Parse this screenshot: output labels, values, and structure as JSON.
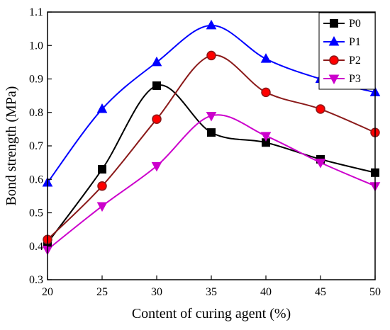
{
  "chart_data": {
    "type": "line",
    "xlabel": "Content of curing agent (%)",
    "ylabel": "Bond strength (MPa)",
    "x": [
      20,
      25,
      30,
      35,
      40,
      45,
      50
    ],
    "xlim": [
      20,
      50
    ],
    "ylim": [
      0.3,
      1.1
    ],
    "x_ticks": [
      20,
      25,
      30,
      35,
      40,
      45,
      50
    ],
    "y_ticks": [
      0.3,
      0.4,
      0.5,
      0.6,
      0.7,
      0.8,
      0.9,
      1.0,
      1.1
    ],
    "x_tick_labels": [
      "20",
      "25",
      "30",
      "35",
      "40",
      "45",
      "50"
    ],
    "y_tick_labels": [
      "0.3",
      "0.4",
      "0.5",
      "0.6",
      "0.7",
      "0.8",
      "0.9",
      "1.0",
      "1.1"
    ],
    "grid": false,
    "legend_position": "top-right",
    "series": [
      {
        "name": "P0",
        "values": [
          0.41,
          0.63,
          0.88,
          0.74,
          0.71,
          0.66,
          0.62
        ],
        "color": "#000000",
        "marker": "square"
      },
      {
        "name": "P1",
        "values": [
          0.59,
          0.81,
          0.95,
          1.06,
          0.96,
          0.9,
          0.86
        ],
        "color": "#0000FF",
        "marker": "triangle-up"
      },
      {
        "name": "P2",
        "values": [
          0.42,
          0.58,
          0.78,
          0.97,
          0.86,
          0.81,
          0.74
        ],
        "color": "#8B1A1A",
        "marker_fill": "#FF0000",
        "marker": "circle"
      },
      {
        "name": "P3",
        "values": [
          0.39,
          0.52,
          0.64,
          0.79,
          0.73,
          0.65,
          0.58
        ],
        "color": "#CC00CC",
        "marker": "triangle-down"
      }
    ]
  }
}
